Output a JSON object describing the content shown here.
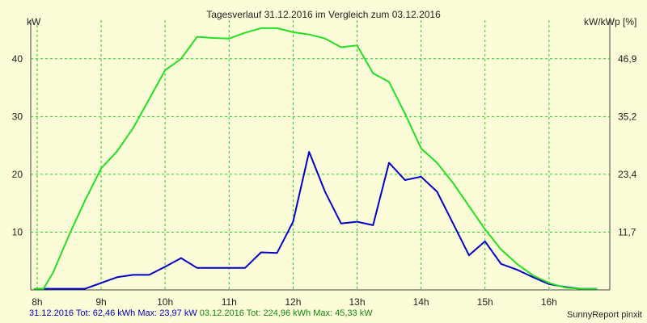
{
  "chart_data": {
    "type": "line",
    "title": "Tagesverlauf 31.12.2016 im Vergleich zum 03.12.2016",
    "ylabel_left": "kW",
    "ylabel_right": "kW/kWp [%]",
    "x_ticks": [
      "8h",
      "9h",
      "10h",
      "11h",
      "12h",
      "13h",
      "14h",
      "15h",
      "16h"
    ],
    "y_ticks_left": [
      10,
      20,
      30,
      40
    ],
    "y_ticks_right": [
      "11,7",
      "23,4",
      "35,2",
      "46,9"
    ],
    "xlim": [
      7.9,
      16.95
    ],
    "ylim": [
      0,
      45
    ],
    "grid": true,
    "series": [
      {
        "name": "31.12.2016",
        "color": "#0000c8",
        "x": [
          8.0,
          8.25,
          8.5,
          8.75,
          9.0,
          9.25,
          9.5,
          9.75,
          10.0,
          10.25,
          10.5,
          10.75,
          11.0,
          11.25,
          11.5,
          11.75,
          12.0,
          12.25,
          12.5,
          12.75,
          13.0,
          13.25,
          13.5,
          13.75,
          14.0,
          14.25,
          14.5,
          14.75,
          15.0,
          15.25,
          15.5,
          15.75,
          16.0,
          16.25,
          16.5,
          16.75
        ],
        "values": [
          0.2,
          0.2,
          0.2,
          0.2,
          1.2,
          2.2,
          2.6,
          2.6,
          4.0,
          5.5,
          3.8,
          3.8,
          3.8,
          3.8,
          6.5,
          6.4,
          11.8,
          23.9,
          17.0,
          11.5,
          11.8,
          11.2,
          22.0,
          19.0,
          19.6,
          17.0,
          11.5,
          6.0,
          8.4,
          4.5,
          3.5,
          2.2,
          1.0,
          0.5,
          0.2,
          0.2
        ]
      },
      {
        "name": "03.12.2016",
        "color": "#20e020",
        "x": [
          7.95,
          8.1,
          8.25,
          8.5,
          8.75,
          9.0,
          9.25,
          9.5,
          9.75,
          10.0,
          10.25,
          10.5,
          10.75,
          11.0,
          11.25,
          11.5,
          11.75,
          12.0,
          12.25,
          12.5,
          12.75,
          13.0,
          13.25,
          13.5,
          13.75,
          14.0,
          14.25,
          14.5,
          14.75,
          15.0,
          15.25,
          15.5,
          15.75,
          16.0,
          16.25,
          16.5,
          16.75
        ],
        "values": [
          0.2,
          0.2,
          3.0,
          9.5,
          15.5,
          21.0,
          24.0,
          28.0,
          33.0,
          38.0,
          40.0,
          43.8,
          43.6,
          43.5,
          44.5,
          45.3,
          45.3,
          44.6,
          44.2,
          43.5,
          42.0,
          42.3,
          37.5,
          36.0,
          30.5,
          24.5,
          22.0,
          18.5,
          14.5,
          10.5,
          7.0,
          4.5,
          2.5,
          1.2,
          0.4,
          0.2,
          0.2
        ]
      }
    ],
    "footer": {
      "s1_label": "31.12.2016 Tot: 62,46 kWh Max: 23,97 kW",
      "s2_label": "03.12.2016 Tot: 224,96 kWh Max: 45,33 kW"
    },
    "credit": "SunnyReport pinxit"
  }
}
